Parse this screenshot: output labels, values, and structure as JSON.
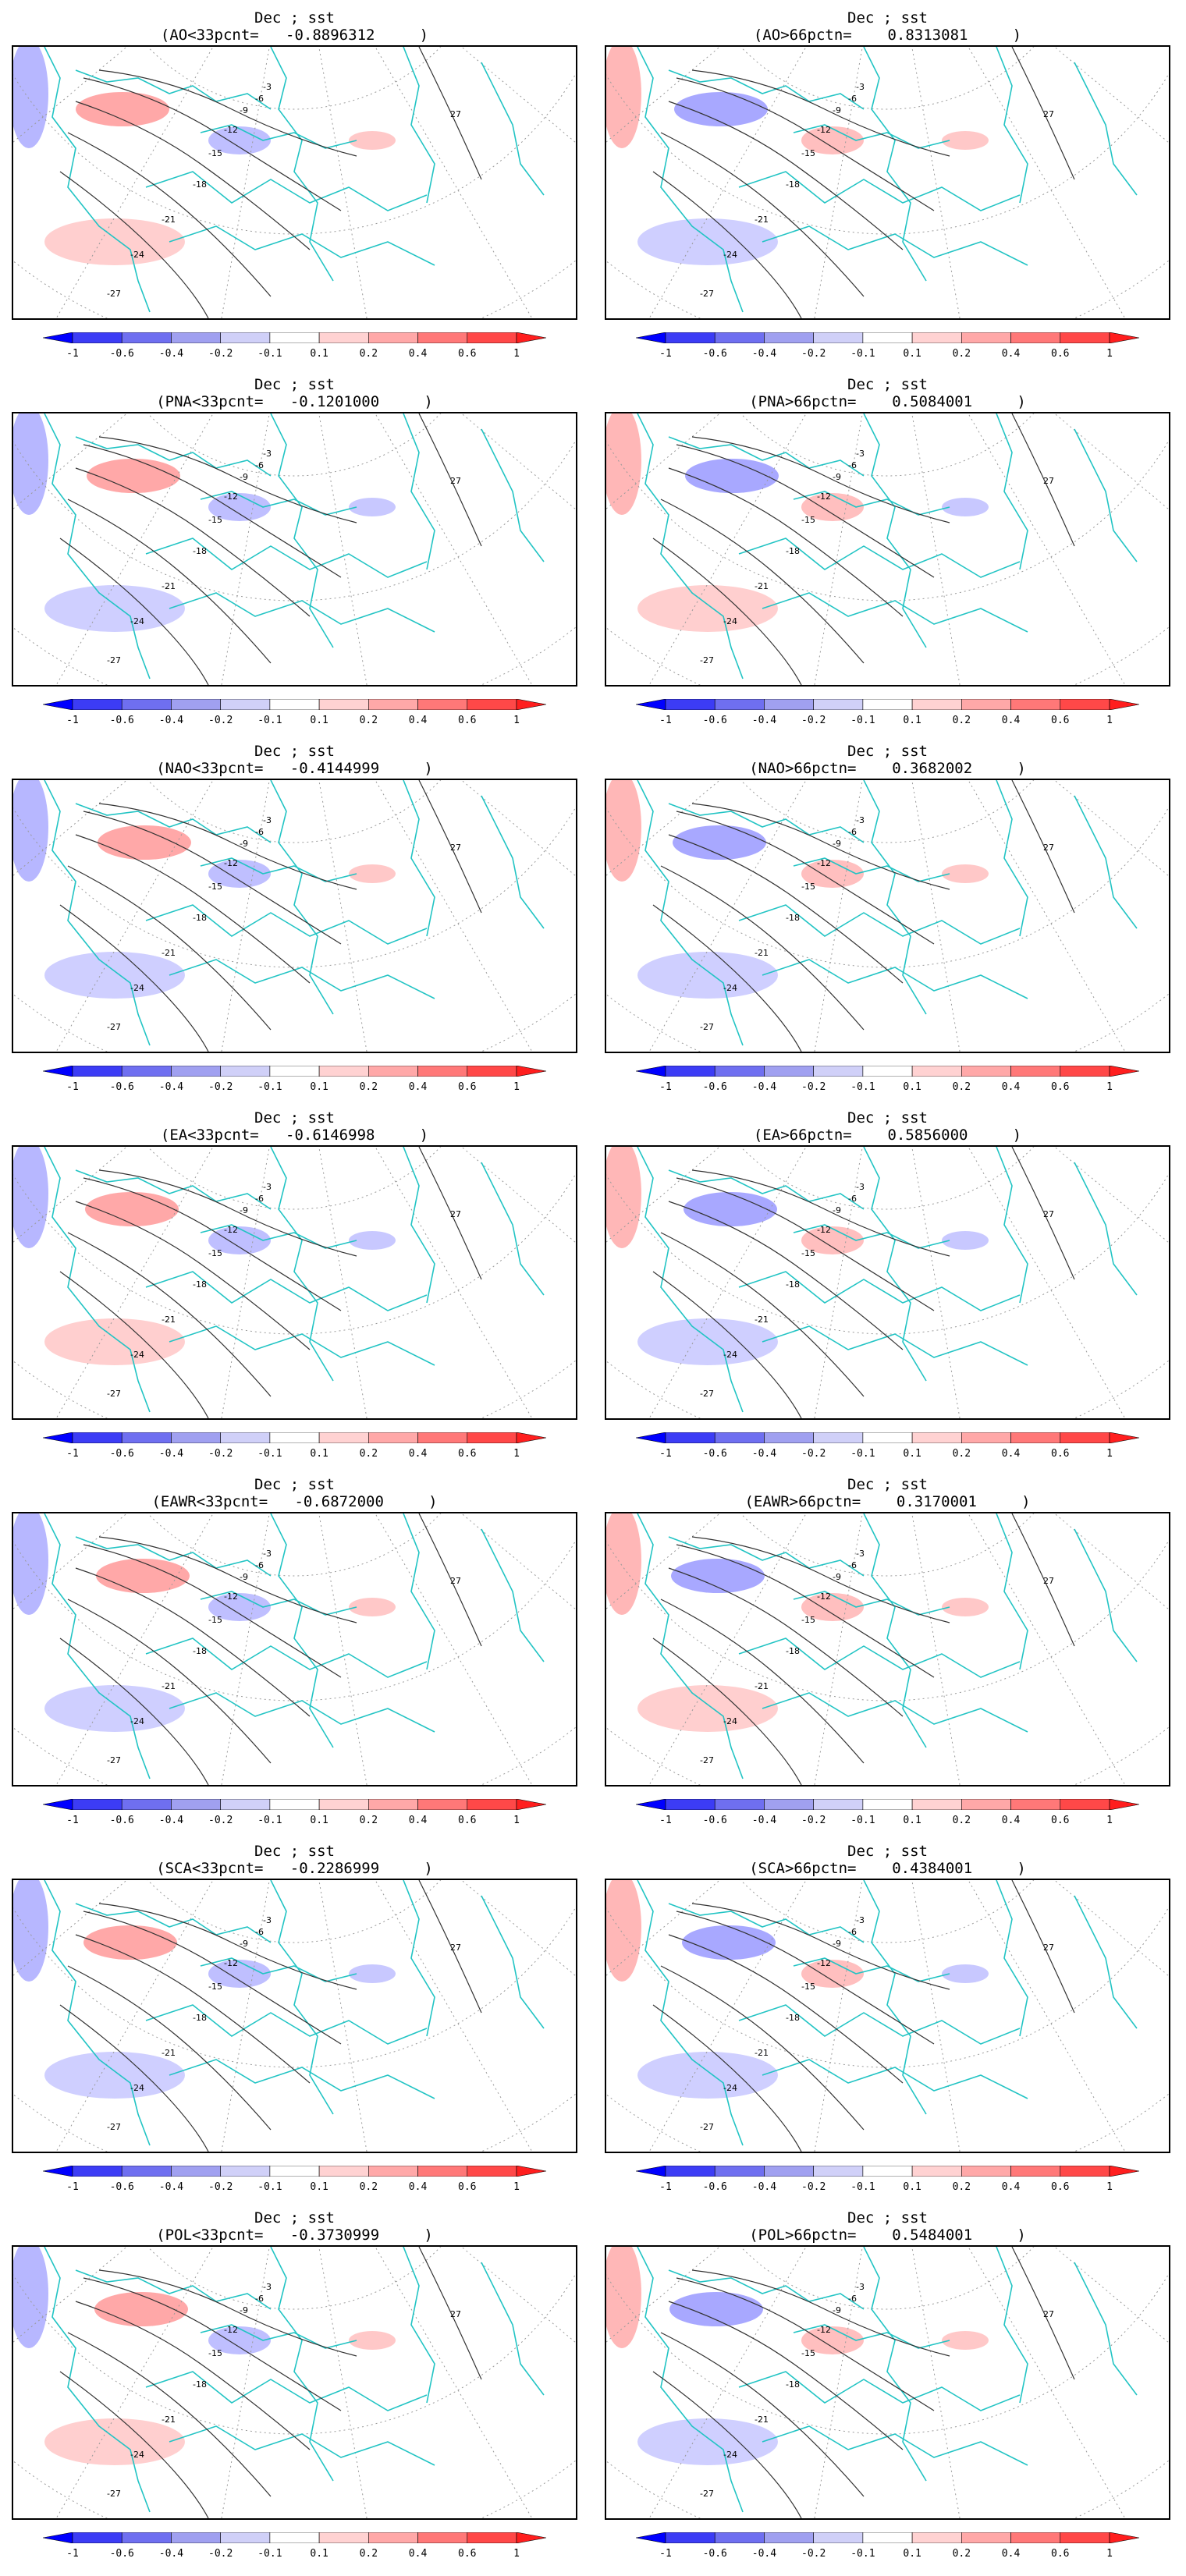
{
  "panels": [
    {
      "title": "Dec ; sst",
      "subtitle": "(AO<33pcnt=   -0.8896312     )"
    },
    {
      "title": "Dec ; sst",
      "subtitle": "(AO>66pctn=    0.8313081     )"
    },
    {
      "title": "Dec ; sst",
      "subtitle": "(PNA<33pcnt=   -0.1201000     )"
    },
    {
      "title": "Dec ; sst",
      "subtitle": "(PNA>66pctn=    0.5084001     )"
    },
    {
      "title": "Dec ; sst",
      "subtitle": "(NAO<33pcnt=   -0.4144999     )"
    },
    {
      "title": "Dec ; sst",
      "subtitle": "(NAO>66pctn=    0.3682002     )"
    },
    {
      "title": "Dec ; sst",
      "subtitle": "(EA<33pcnt=   -0.6146998     )"
    },
    {
      "title": "Dec ; sst",
      "subtitle": "(EA>66pctn=    0.5856000     )"
    },
    {
      "title": "Dec ; sst",
      "subtitle": "(EAWR<33pcnt=   -0.6872000     )"
    },
    {
      "title": "Dec ; sst",
      "subtitle": "(EAWR>66pctn=    0.3170001     )"
    },
    {
      "title": "Dec ; sst",
      "subtitle": "(SCA<33pcnt=   -0.2286999     )"
    },
    {
      "title": "Dec ; sst",
      "subtitle": "(SCA>66pctn=    0.4384001     )"
    },
    {
      "title": "Dec ; sst",
      "subtitle": "(POL<33pcnt=   -0.3730999     )"
    },
    {
      "title": "Dec ; sst",
      "subtitle": "(POL>66pctn=    0.5484001     )"
    }
  ],
  "colorbar": {
    "labels": [
      "-1",
      "-0.6",
      "-0.4",
      "-0.2",
      "-0.1",
      "0.1",
      "0.2",
      "0.4",
      "0.6",
      "1"
    ],
    "colors": [
      "#0000ff",
      "#3c3cf5",
      "#6f6ff0",
      "#a0a0f0",
      "#d0d0f8",
      "#ffffff",
      "#ffd2d2",
      "#ffa8a8",
      "#ff7878",
      "#ff4848",
      "#ff1e1e"
    ]
  },
  "map_colors": {
    "coast": "#22c4c4",
    "contour": "#333333",
    "grid": "#9a9a9a",
    "positive": "#ff6060",
    "negative": "#6060ff"
  },
  "contour_labels": [
    "-27",
    "-24",
    "-21",
    "-18",
    "-15",
    "-12",
    "-9",
    "-6",
    "-3",
    "27"
  ]
}
